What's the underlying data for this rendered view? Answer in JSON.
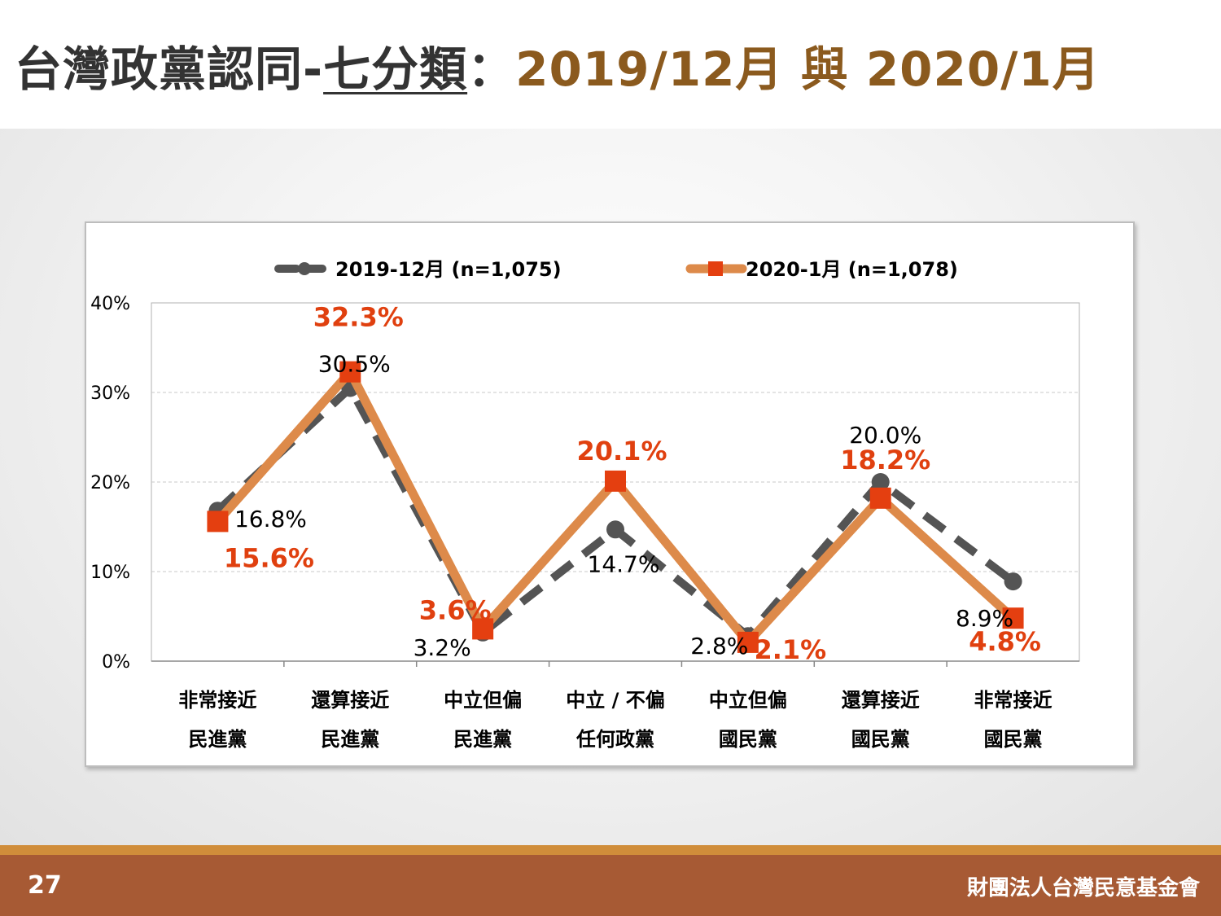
{
  "title": {
    "part1": "台灣政黨認同-",
    "part2": "七分類",
    "part3": "：",
    "part4": "2019/12月 與 2020/1月"
  },
  "footer": {
    "page_number": "27",
    "org_name": "財團法人台灣民意基金會"
  },
  "colors": {
    "series_2019": "#545454",
    "series_2020_line": "#dd8a4a",
    "series_2020_marker": "#e43f10",
    "label_2020": "#e0400f",
    "title_gold": "#8b5a1e",
    "footer_bg": "#a75a34"
  },
  "chart_data": {
    "type": "line",
    "ylim": [
      0,
      40
    ],
    "yticks": [
      "0%",
      "10%",
      "20%",
      "30%",
      "40%"
    ],
    "grid": true,
    "legend_position": "top",
    "categories": [
      [
        "非常接近",
        "民進黨"
      ],
      [
        "還算接近",
        "民進黨"
      ],
      [
        "中立但偏",
        "民進黨"
      ],
      [
        "中立 / 不偏",
        "任何政黨"
      ],
      [
        "中立但偏",
        "國民黨"
      ],
      [
        "還算接近",
        "國民黨"
      ],
      [
        "非常接近",
        "國民黨"
      ]
    ],
    "series": [
      {
        "name": "2019-12月 (n=1,075)",
        "values": [
          16.8,
          30.5,
          3.2,
          14.7,
          2.8,
          20.0,
          8.9
        ],
        "labels": [
          "16.8%",
          "30.5%",
          "3.2%",
          "14.7%",
          "2.8%",
          "20.0%",
          "8.9%"
        ],
        "style": "dashed",
        "marker": "circle"
      },
      {
        "name": "2020-1月 (n=1,078)",
        "values": [
          15.6,
          32.3,
          3.6,
          20.1,
          2.1,
          18.2,
          4.8
        ],
        "labels": [
          "15.6%",
          "32.3%",
          "3.6%",
          "20.1%",
          "2.1%",
          "18.2%",
          "4.8%"
        ],
        "style": "solid",
        "marker": "square"
      }
    ]
  }
}
